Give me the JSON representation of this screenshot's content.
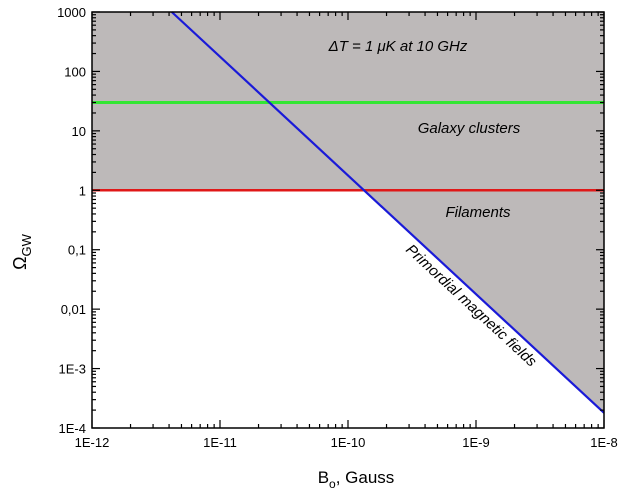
{
  "chart_data": {
    "type": "line",
    "xscale": "log",
    "yscale": "log",
    "xlim": [
      1e-12,
      1e-08
    ],
    "ylim": [
      0.0001,
      1000
    ],
    "xticks": [
      {
        "value": 1e-12,
        "label": "1E-12"
      },
      {
        "value": 1e-11,
        "label": "1E-11"
      },
      {
        "value": 1e-10,
        "label": "1E-10"
      },
      {
        "value": 1e-09,
        "label": "1E-9"
      },
      {
        "value": 1e-08,
        "label": "1E-8"
      }
    ],
    "yticks": [
      {
        "value": 0.0001,
        "label": "1E-4"
      },
      {
        "value": 0.001,
        "label": "1E-3"
      },
      {
        "value": 0.01,
        "label": "0,01"
      },
      {
        "value": 0.1,
        "label": "0,1"
      },
      {
        "value": 1,
        "label": "1"
      },
      {
        "value": 10,
        "label": "10"
      },
      {
        "value": 100,
        "label": "100"
      },
      {
        "value": 1000,
        "label": "1000"
      }
    ],
    "xlabel": {
      "main": "B",
      "sub": "o",
      "rest": ", Gauss"
    },
    "ylabel": {
      "main": "Ω",
      "sub": "GW"
    },
    "grid": false,
    "colors": {
      "shade": "#bdb9b9",
      "primordial": "#1a1ad8",
      "clusters": "#33e633",
      "filaments": "#e01818"
    },
    "series": [
      {
        "name": "Primordial magnetic fields",
        "x": [
          4.2e-12,
          1e-08
        ],
        "y": [
          1000,
          0.00018
        ]
      },
      {
        "name": "Galaxy clusters",
        "x": [
          1e-12,
          1e-08
        ],
        "y": [
          30,
          30
        ]
      },
      {
        "name": "Filaments",
        "x": [
          1e-12,
          1e-08
        ],
        "y": [
          1,
          1
        ]
      }
    ],
    "annotations": {
      "sensitivity": "ΔT = 1 μK at 10 GHz",
      "clusters": "Galaxy clusters",
      "filaments": "Filaments",
      "primordial": "Primordial magnetic fields"
    }
  }
}
